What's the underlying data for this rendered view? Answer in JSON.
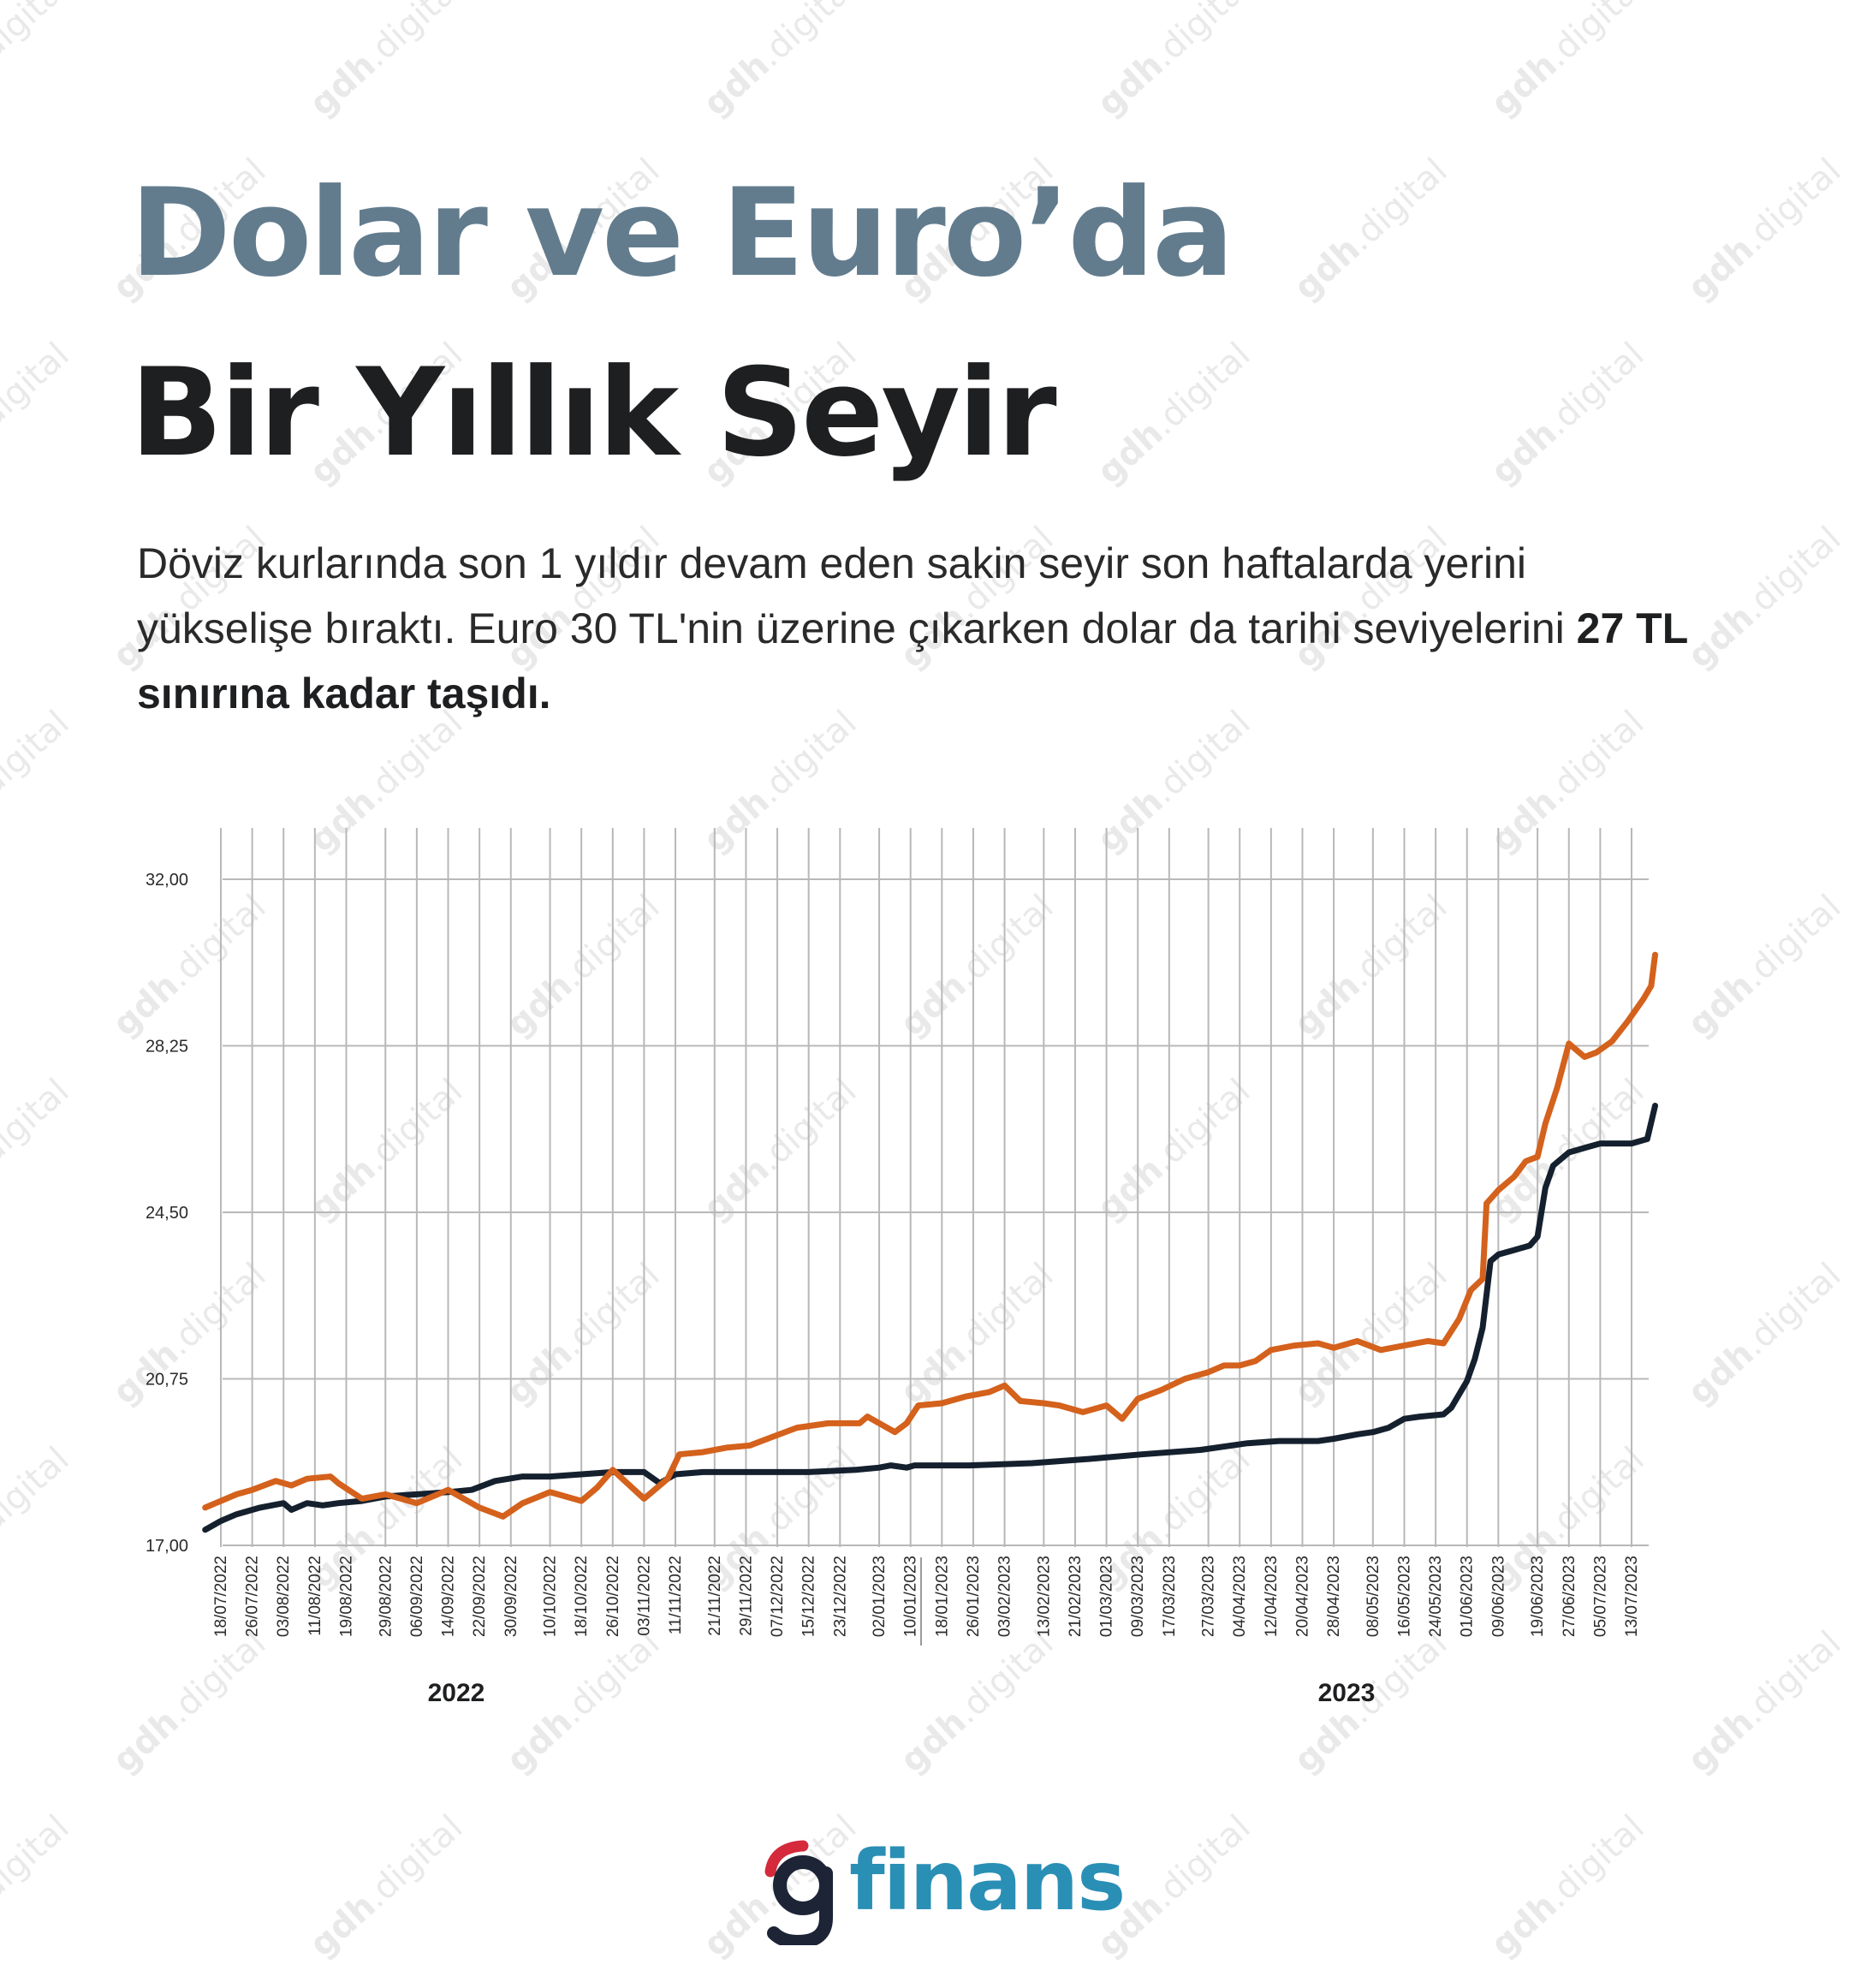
{
  "title_line1": "Dolar ve Euro’da",
  "title_line2": "Bir Yıllık Seyir",
  "lead_text": "Döviz kurlarında son 1 yıldır devam eden sakin seyir son haftalarda yerini yükselişe bıraktı. Euro 30 TL'nin üzerine çıkarken dolar da tarihi seviyelerini ",
  "lead_bold": "27 TL sınırına kadar taşıdı.",
  "logo_text": "finans",
  "watermark": {
    "bold": "gdh",
    "rest": ".digital"
  },
  "colors": {
    "euro": "#d4611c",
    "dolar": "#15202e",
    "title_accent": "#627c8e",
    "brand": "#2a8fb5",
    "brand_red": "#d42a3b"
  },
  "chart_data": {
    "type": "line",
    "x_type": "date",
    "ylim": [
      17.0,
      32.0
    ],
    "y_ticks": [
      "32,00",
      "28,25",
      "24,50",
      "20,75",
      "17,00"
    ],
    "y_tick_values": [
      32.0,
      28.25,
      24.5,
      20.75,
      17.0
    ],
    "x_tick_labels": [
      "18/07/2022",
      "26/07/2022",
      "03/08/2022",
      "11/08/2022",
      "19/08/2022",
      "29/08/2022",
      "06/09/2022",
      "14/09/2022",
      "22/09/2022",
      "30/09/2022",
      "10/10/2022",
      "18/10/2022",
      "26/10/2022",
      "03/11/2022",
      "11/11/2022",
      "21/11/2022",
      "29/11/2022",
      "07/12/2022",
      "15/12/2022",
      "23/12/2022",
      "02/01/2023",
      "10/01/2023",
      "18/01/2023",
      "26/01/2023",
      "03/02/2023",
      "13/02/2023",
      "21/02/2023",
      "01/03/2023",
      "09/03/2023",
      "17/03/2023",
      "27/03/2023",
      "04/04/2023",
      "12/04/2023",
      "20/04/2023",
      "28/04/2023",
      "08/05/2023",
      "16/05/2023",
      "24/05/2023",
      "01/06/2023",
      "09/06/2023",
      "19/06/2023",
      "27/06/2023",
      "05/07/2023",
      "13/07/2023"
    ],
    "years": [
      "2022",
      "2023"
    ],
    "grid": true,
    "legend": "none",
    "series": [
      {
        "key": "euro",
        "points": [
          [
            "2022-07-14",
            17.85
          ],
          [
            "2022-07-18",
            18.0
          ],
          [
            "2022-07-22",
            18.15
          ],
          [
            "2022-07-26",
            18.25
          ],
          [
            "2022-08-01",
            18.45
          ],
          [
            "2022-08-05",
            18.35
          ],
          [
            "2022-08-09",
            18.5
          ],
          [
            "2022-08-15",
            18.55
          ],
          [
            "2022-08-17",
            18.4
          ],
          [
            "2022-08-23",
            18.05
          ],
          [
            "2022-08-29",
            18.15
          ],
          [
            "2022-09-06",
            17.95
          ],
          [
            "2022-09-14",
            18.25
          ],
          [
            "2022-09-22",
            17.85
          ],
          [
            "2022-09-28",
            17.65
          ],
          [
            "2022-10-03",
            17.95
          ],
          [
            "2022-10-10",
            18.2
          ],
          [
            "2022-10-18",
            18.0
          ],
          [
            "2022-10-22",
            18.3
          ],
          [
            "2022-10-26",
            18.7
          ],
          [
            "2022-11-03",
            18.05
          ],
          [
            "2022-11-09",
            18.5
          ],
          [
            "2022-11-12",
            19.05
          ],
          [
            "2022-11-18",
            19.1
          ],
          [
            "2022-11-24",
            19.2
          ],
          [
            "2022-11-30",
            19.25
          ],
          [
            "2022-12-06",
            19.45
          ],
          [
            "2022-12-12",
            19.65
          ],
          [
            "2022-12-20",
            19.75
          ],
          [
            "2022-12-28",
            19.75
          ],
          [
            "2022-12-30",
            19.9
          ],
          [
            "2023-01-06",
            19.55
          ],
          [
            "2023-01-09",
            19.75
          ],
          [
            "2023-01-12",
            20.15
          ],
          [
            "2023-01-18",
            20.2
          ],
          [
            "2023-01-24",
            20.35
          ],
          [
            "2023-01-30",
            20.45
          ],
          [
            "2023-02-03",
            20.6
          ],
          [
            "2023-02-07",
            20.25
          ],
          [
            "2023-02-13",
            20.2
          ],
          [
            "2023-02-17",
            20.15
          ],
          [
            "2023-02-23",
            20.0
          ],
          [
            "2023-03-01",
            20.15
          ],
          [
            "2023-03-05",
            19.85
          ],
          [
            "2023-03-09",
            20.3
          ],
          [
            "2023-03-15",
            20.5
          ],
          [
            "2023-03-21",
            20.75
          ],
          [
            "2023-03-27",
            20.9
          ],
          [
            "2023-03-31",
            21.05
          ],
          [
            "2023-04-04",
            21.05
          ],
          [
            "2023-04-08",
            21.15
          ],
          [
            "2023-04-12",
            21.4
          ],
          [
            "2023-04-18",
            21.5
          ],
          [
            "2023-04-24",
            21.55
          ],
          [
            "2023-04-28",
            21.45
          ],
          [
            "2023-05-04",
            21.6
          ],
          [
            "2023-05-10",
            21.4
          ],
          [
            "2023-05-16",
            21.5
          ],
          [
            "2023-05-22",
            21.6
          ],
          [
            "2023-05-26",
            21.55
          ],
          [
            "2023-05-30",
            22.1
          ],
          [
            "2023-06-02",
            22.75
          ],
          [
            "2023-06-05",
            23.0
          ],
          [
            "2023-06-06",
            24.7
          ],
          [
            "2023-06-09",
            25.0
          ],
          [
            "2023-06-13",
            25.3
          ],
          [
            "2023-06-16",
            25.65
          ],
          [
            "2023-06-19",
            25.75
          ],
          [
            "2023-06-21",
            26.5
          ],
          [
            "2023-06-24",
            27.3
          ],
          [
            "2023-06-27",
            28.3
          ],
          [
            "2023-07-01",
            28.0
          ],
          [
            "2023-07-04",
            28.1
          ],
          [
            "2023-07-08",
            28.35
          ],
          [
            "2023-07-12",
            28.8
          ],
          [
            "2023-07-16",
            29.3
          ],
          [
            "2023-07-18",
            29.6
          ],
          [
            "2023-07-19",
            30.3
          ]
        ]
      },
      {
        "key": "dolar",
        "points": [
          [
            "2022-07-14",
            17.35
          ],
          [
            "2022-07-18",
            17.55
          ],
          [
            "2022-07-22",
            17.7
          ],
          [
            "2022-07-28",
            17.85
          ],
          [
            "2022-08-03",
            17.95
          ],
          [
            "2022-08-05",
            17.8
          ],
          [
            "2022-08-09",
            17.95
          ],
          [
            "2022-08-13",
            17.9
          ],
          [
            "2022-08-17",
            17.95
          ],
          [
            "2022-08-23",
            18.0
          ],
          [
            "2022-08-29",
            18.1
          ],
          [
            "2022-09-06",
            18.15
          ],
          [
            "2022-09-14",
            18.2
          ],
          [
            "2022-09-20",
            18.25
          ],
          [
            "2022-09-26",
            18.45
          ],
          [
            "2022-10-03",
            18.55
          ],
          [
            "2022-10-10",
            18.55
          ],
          [
            "2022-10-18",
            18.6
          ],
          [
            "2022-10-26",
            18.65
          ],
          [
            "2022-11-03",
            18.65
          ],
          [
            "2022-11-07",
            18.4
          ],
          [
            "2022-11-11",
            18.6
          ],
          [
            "2022-11-18",
            18.65
          ],
          [
            "2022-12-01",
            18.65
          ],
          [
            "2022-12-15",
            18.65
          ],
          [
            "2022-12-27",
            18.7
          ],
          [
            "2023-01-02",
            18.75
          ],
          [
            "2023-01-05",
            18.8
          ],
          [
            "2023-01-09",
            18.75
          ],
          [
            "2023-01-11",
            18.8
          ],
          [
            "2023-01-25",
            18.8
          ],
          [
            "2023-02-10",
            18.85
          ],
          [
            "2023-02-25",
            18.95
          ],
          [
            "2023-03-10",
            19.05
          ],
          [
            "2023-03-25",
            19.15
          ],
          [
            "2023-04-06",
            19.3
          ],
          [
            "2023-04-14",
            19.35
          ],
          [
            "2023-04-24",
            19.35
          ],
          [
            "2023-04-28",
            19.4
          ],
          [
            "2023-05-04",
            19.5
          ],
          [
            "2023-05-08",
            19.55
          ],
          [
            "2023-05-12",
            19.65
          ],
          [
            "2023-05-16",
            19.85
          ],
          [
            "2023-05-20",
            19.9
          ],
          [
            "2023-05-26",
            19.95
          ],
          [
            "2023-05-28",
            20.1
          ],
          [
            "2023-06-01",
            20.7
          ],
          [
            "2023-06-03",
            21.2
          ],
          [
            "2023-06-05",
            21.9
          ],
          [
            "2023-06-07",
            23.4
          ],
          [
            "2023-06-09",
            23.55
          ],
          [
            "2023-06-13",
            23.65
          ],
          [
            "2023-06-17",
            23.75
          ],
          [
            "2023-06-19",
            23.95
          ],
          [
            "2023-06-21",
            25.05
          ],
          [
            "2023-06-23",
            25.55
          ],
          [
            "2023-06-27",
            25.85
          ],
          [
            "2023-07-01",
            25.95
          ],
          [
            "2023-07-05",
            26.05
          ],
          [
            "2023-07-09",
            26.05
          ],
          [
            "2023-07-13",
            26.05
          ],
          [
            "2023-07-15",
            26.1
          ],
          [
            "2023-07-17",
            26.15
          ],
          [
            "2023-07-19",
            26.9
          ]
        ]
      }
    ]
  }
}
